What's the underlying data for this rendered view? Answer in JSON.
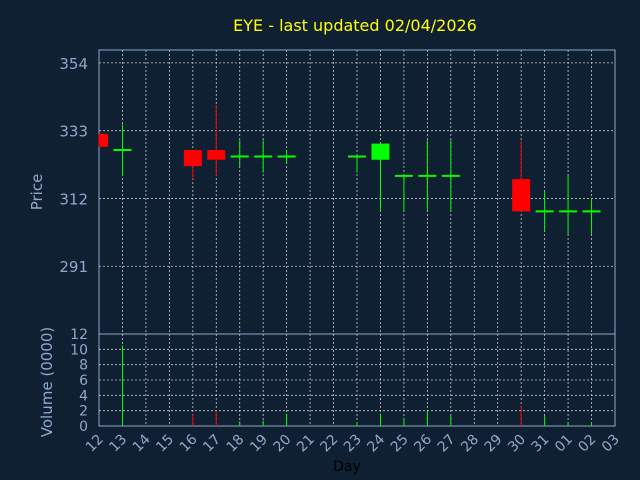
{
  "chart_data": {
    "type": "candlestick",
    "title": "EYE - last updated 02/04/2026",
    "xlabel": "Day",
    "price_panel": {
      "ylabel": "Price",
      "ylim": [
        270,
        358
      ],
      "yticks": [
        291,
        312,
        333,
        354
      ]
    },
    "volume_panel": {
      "ylabel": "Volume (0000)",
      "ylim": [
        0,
        12
      ],
      "yticks": [
        0,
        2,
        4,
        6,
        8,
        10,
        12
      ]
    },
    "x_tick_labels": [
      "12",
      "13",
      "14",
      "15",
      "16",
      "17",
      "18",
      "19",
      "20",
      "21",
      "22",
      "23",
      "24",
      "25",
      "26",
      "27",
      "28",
      "29",
      "30",
      "31",
      "01",
      "02",
      "03"
    ],
    "candles": [
      {
        "day": "12",
        "open": 332,
        "close": 328,
        "high": 332,
        "low": 328,
        "volume": 0
      },
      {
        "day": "13",
        "open": 327,
        "close": 327,
        "high": 335,
        "low": 319,
        "volume": 10.5
      },
      {
        "day": "16",
        "open": 327,
        "close": 322,
        "high": 327,
        "low": 318,
        "volume": 1.5
      },
      {
        "day": "17",
        "open": 327,
        "close": 324,
        "high": 341,
        "low": 319,
        "volume": 2.0
      },
      {
        "day": "18",
        "open": 325,
        "close": 325,
        "high": 330,
        "low": 322,
        "volume": 0.6
      },
      {
        "day": "19",
        "open": 325,
        "close": 325,
        "high": 330,
        "low": 320,
        "volume": 0.7
      },
      {
        "day": "20",
        "open": 325,
        "close": 325,
        "high": 327,
        "low": 323,
        "volume": 1.6
      },
      {
        "day": "23",
        "open": 325,
        "close": 325,
        "high": 325,
        "low": 320,
        "volume": 0.5
      },
      {
        "day": "24",
        "open": 324,
        "close": 329,
        "high": 329,
        "low": 308,
        "volume": 1.6
      },
      {
        "day": "25",
        "open": 319,
        "close": 319,
        "high": 319,
        "low": 308,
        "volume": 1.0
      },
      {
        "day": "26",
        "open": 319,
        "close": 319,
        "high": 330,
        "low": 308,
        "volume": 1.9
      },
      {
        "day": "27",
        "open": 319,
        "close": 319,
        "high": 330,
        "low": 308,
        "volume": 1.4
      },
      {
        "day": "30",
        "open": 318,
        "close": 308,
        "high": 330,
        "low": 308,
        "volume": 2.6
      },
      {
        "day": "31",
        "open": 308,
        "close": 308,
        "high": 314,
        "low": 302,
        "volume": 1.3
      },
      {
        "day": "01",
        "open": 308,
        "close": 308,
        "high": 319,
        "low": 301,
        "volume": 0.5
      },
      {
        "day": "02",
        "open": 308,
        "close": 308,
        "high": 312,
        "low": 301,
        "volume": 0.5
      }
    ],
    "grid": true,
    "colors": {
      "background": "#0f2033",
      "axis_text": "#8fa9c9",
      "title": "#ffff00",
      "grid": "#c8c8c8",
      "up": "#00ff00",
      "down": "#ff0000",
      "label_text": "#8fa9c9"
    }
  }
}
